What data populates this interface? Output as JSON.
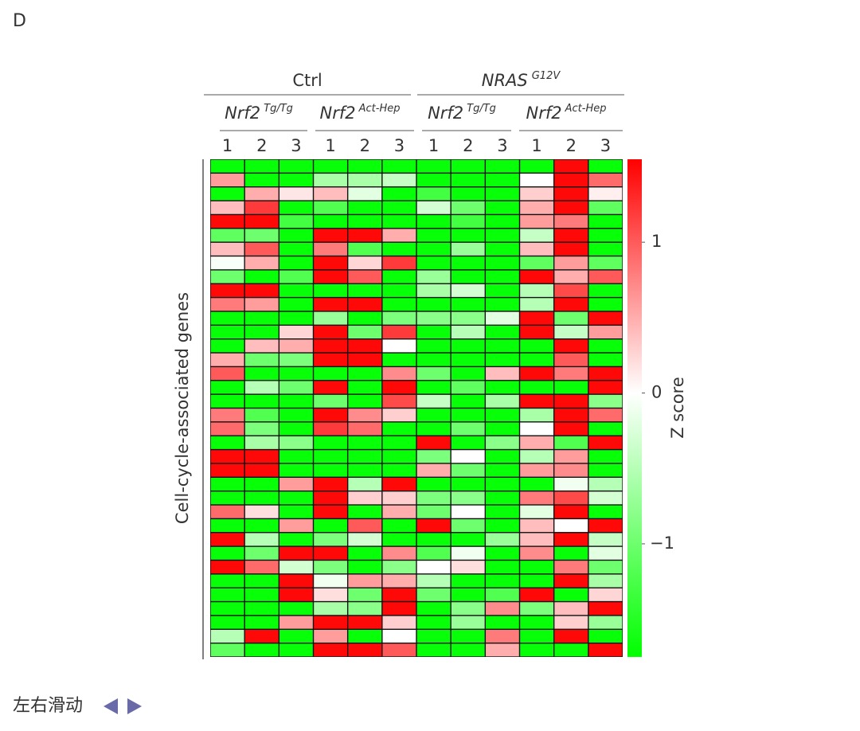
{
  "panel_label": "D",
  "chart_data": {
    "type": "heatmap",
    "groups": [
      {
        "label": "Ctrl",
        "subgroups": [
          {
            "gene": "Nrf2",
            "sup": "Tg/Tg"
          },
          {
            "gene": "Nrf2",
            "sup": "Act-Hep"
          }
        ]
      },
      {
        "label": "NRAS",
        "sup": "G12V",
        "subgroups": [
          {
            "gene": "Nrf2",
            "sup": "Tg/Tg"
          },
          {
            "gene": "Nrf2",
            "sup": "Act-Hep"
          }
        ]
      }
    ],
    "categories": [
      "1",
      "2",
      "3",
      "1",
      "2",
      "3",
      "1",
      "2",
      "3",
      "1",
      "2",
      "3"
    ],
    "ylabel": "Cell-cycle-associated genes",
    "colorbar_label": "Z score",
    "colors": [
      "#00ff00",
      "#ffffff",
      "#ff0000"
    ],
    "zlim": [
      -1.75,
      1.55
    ],
    "zticks": [
      {
        "value": -1,
        "label": "−1"
      },
      0,
      1
    ],
    "z": [
      [
        -1.7,
        -1.7,
        -1.7,
        -1.7,
        -1.7,
        -1.7,
        -1.7,
        -1.7,
        -1.7,
        -1.7,
        1.5,
        -1.7
      ],
      [
        0.6,
        -1.7,
        -1.7,
        -0.6,
        -0.6,
        -0.4,
        -1.7,
        -1.7,
        -1.7,
        0,
        1.5,
        0.9
      ],
      [
        -1.7,
        0.5,
        0.15,
        0.4,
        -0.2,
        -1.7,
        -1.3,
        -1.7,
        -1.7,
        0.3,
        1.5,
        0.1
      ],
      [
        0.4,
        1.2,
        -1.7,
        -1.2,
        -1.7,
        -1.7,
        -0.3,
        -1.0,
        -1.7,
        0.5,
        1.5,
        -1.1
      ],
      [
        1.5,
        1.5,
        -1.3,
        -1.7,
        -1.7,
        -1.7,
        -1.7,
        -1.3,
        -1.7,
        0.6,
        0.8,
        -1.7
      ],
      [
        -1.1,
        -1.0,
        -1.7,
        1.5,
        1.5,
        0.5,
        -1.7,
        -1.7,
        -1.7,
        -0.4,
        1.5,
        -1.7
      ],
      [
        0.4,
        1.0,
        -1.7,
        0.8,
        -1.2,
        -1.7,
        -1.7,
        -0.7,
        -1.7,
        0.4,
        1.5,
        -1.7
      ],
      [
        -0.05,
        0.5,
        -1.7,
        1.5,
        0.25,
        1.2,
        -1.7,
        -1.7,
        -1.7,
        -1.1,
        0.6,
        -1.1
      ],
      [
        -1.0,
        -1.7,
        -1.2,
        1.5,
        1.0,
        -1.7,
        -0.7,
        -1.7,
        -1.7,
        1.5,
        0.5,
        1.0
      ],
      [
        1.5,
        1.5,
        -1.7,
        -1.7,
        -1.7,
        -1.7,
        -0.6,
        -0.3,
        -1.7,
        -0.5,
        1.1,
        -1.7
      ],
      [
        0.8,
        0.6,
        -1.7,
        1.5,
        1.5,
        -1.7,
        -1.7,
        -1.7,
        -1.7,
        -0.5,
        1.5,
        -1.7
      ],
      [
        -1.7,
        -1.7,
        -1.7,
        -0.7,
        -1.7,
        -0.9,
        -0.8,
        -0.8,
        -0.2,
        1.5,
        -1.0,
        1.5
      ],
      [
        -1.7,
        -1.7,
        0.25,
        1.5,
        -1.0,
        1.2,
        -1.7,
        -0.5,
        -1.7,
        1.5,
        -0.4,
        0.6
      ],
      [
        -1.7,
        0.4,
        0.5,
        1.5,
        1.5,
        0,
        -1.7,
        -1.7,
        -1.7,
        -1.7,
        1.5,
        -1.7
      ],
      [
        0.5,
        -1.0,
        -0.9,
        1.5,
        1.5,
        -1.7,
        -1.7,
        -1.7,
        -1.7,
        -1.7,
        1.0,
        -1.7
      ],
      [
        1.0,
        -1.7,
        -1.7,
        -1.7,
        -1.7,
        0.7,
        -1.0,
        -1.7,
        0.4,
        1.5,
        0.8,
        1.5
      ],
      [
        -1.7,
        -0.5,
        -1.0,
        1.5,
        -1.7,
        1.5,
        -1.7,
        -1.1,
        -1.7,
        -1.7,
        -1.7,
        1.5
      ],
      [
        -1.7,
        -1.7,
        -1.7,
        -1.0,
        -1.7,
        1.1,
        -0.4,
        -1.7,
        -0.6,
        1.5,
        1.5,
        -0.8
      ],
      [
        0.8,
        -1.2,
        -1.7,
        1.5,
        0.7,
        0.3,
        -1.7,
        -1.7,
        -1.7,
        -0.6,
        1.5,
        0.9
      ],
      [
        0.9,
        -0.9,
        -1.7,
        1.2,
        0.9,
        -1.7,
        -1.7,
        -1.0,
        -1.7,
        0,
        1.5,
        -1.7
      ],
      [
        -1.7,
        -0.6,
        -0.8,
        -1.7,
        -1.7,
        -1.7,
        1.5,
        -1.7,
        -0.8,
        0.5,
        -1.2,
        1.5
      ],
      [
        1.5,
        1.5,
        -1.7,
        -1.7,
        -1.7,
        -1.7,
        -0.9,
        0,
        -1.7,
        -0.5,
        0.6,
        -1.7
      ],
      [
        1.5,
        1.5,
        -1.7,
        -1.7,
        -1.7,
        -1.7,
        0.5,
        -1.0,
        -1.7,
        0.6,
        0.7,
        -1.7
      ],
      [
        -1.7,
        -1.7,
        0.6,
        1.5,
        -0.5,
        1.5,
        -1.7,
        -1.7,
        -1.7,
        -1.7,
        -0.1,
        -0.5
      ],
      [
        -1.7,
        -1.7,
        -1.7,
        1.5,
        0.3,
        0.3,
        -0.9,
        -0.8,
        -1.7,
        0.8,
        1.1,
        -0.3
      ],
      [
        0.9,
        0.2,
        -1.7,
        1.5,
        -1.7,
        0.5,
        -1.0,
        0,
        -1.7,
        -0.2,
        1.5,
        -1.7
      ],
      [
        -1.7,
        -1.7,
        0.6,
        -1.7,
        1.0,
        -1.7,
        1.5,
        -1.0,
        -1.7,
        0.4,
        0,
        1.5
      ],
      [
        1.5,
        -0.5,
        -1.7,
        -0.9,
        -0.3,
        -1.7,
        -1.7,
        -1.7,
        -0.7,
        0.4,
        1.5,
        -0.4
      ],
      [
        -1.7,
        -1.0,
        1.5,
        1.5,
        -1.7,
        0.7,
        -1.2,
        -0.1,
        -1.7,
        0.7,
        -1.7,
        -0.2
      ],
      [
        1.5,
        0.9,
        -0.3,
        -0.9,
        -1.7,
        -0.8,
        0,
        0.2,
        -1.7,
        -1.7,
        0.8,
        -1.0
      ],
      [
        -1.7,
        -1.7,
        1.5,
        -0.1,
        0.6,
        0.5,
        -0.5,
        -1.7,
        -1.7,
        -1.7,
        1.5,
        -0.6
      ],
      [
        -1.7,
        -1.7,
        1.5,
        0.2,
        -1.0,
        1.5,
        -1.0,
        -1.7,
        -1.2,
        1.5,
        -1.7,
        0.25
      ],
      [
        -1.7,
        -1.7,
        -1.7,
        -0.6,
        -0.8,
        1.5,
        -1.7,
        -0.8,
        0.7,
        -0.9,
        0.4,
        1.5
      ],
      [
        -1.7,
        -1.7,
        0.6,
        1.5,
        1.5,
        0.3,
        -1.7,
        -0.7,
        -1.7,
        -1.7,
        0.3,
        -0.7
      ],
      [
        -0.5,
        1.5,
        -1.7,
        0.6,
        -1.7,
        0,
        -1.7,
        -1.7,
        0.8,
        -1.7,
        1.5,
        -1.7
      ],
      [
        -1.1,
        -1.7,
        -1.7,
        1.5,
        1.5,
        1.0,
        -1.7,
        -1.7,
        0.5,
        -1.7,
        -1.7,
        1.5
      ]
    ]
  },
  "footer": {
    "hint": "左右滑动"
  }
}
